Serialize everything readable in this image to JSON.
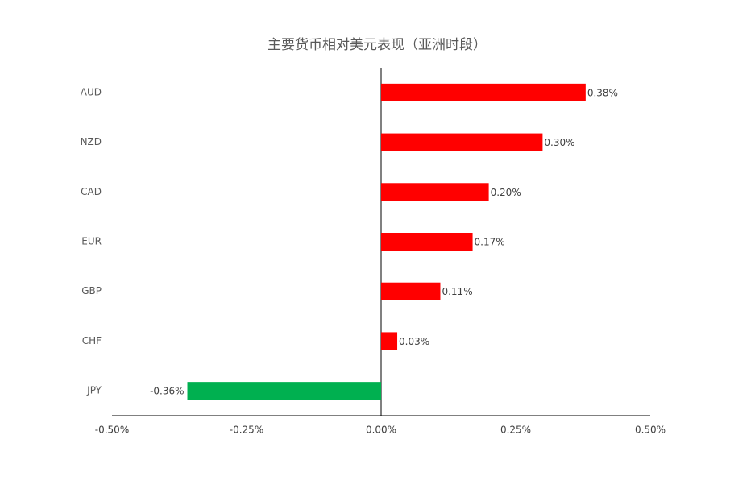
{
  "chart_data": {
    "type": "bar",
    "orientation": "horizontal",
    "title": "主要货币相对美元表现（亚洲时段）",
    "categories": [
      "AUD",
      "NZD",
      "CAD",
      "EUR",
      "GBP",
      "CHF",
      "JPY"
    ],
    "values": [
      0.38,
      0.3,
      0.2,
      0.17,
      0.11,
      0.03,
      -0.36
    ],
    "value_labels": [
      "0.38%",
      "0.30%",
      "0.20%",
      "0.17%",
      "0.11%",
      "0.03%",
      "-0.36%"
    ],
    "colors": [
      "#ff0000",
      "#ff0000",
      "#ff0000",
      "#ff0000",
      "#ff0000",
      "#ff0000",
      "#00b050"
    ],
    "xlim": [
      -0.5,
      0.5
    ],
    "xticks": [
      {
        "value": -0.5,
        "label": "-0.50%"
      },
      {
        "value": -0.25,
        "label": "-0.25%"
      },
      {
        "value": 0,
        "label": "0.00%"
      },
      {
        "value": 0.25,
        "label": "0.25%"
      },
      {
        "value": 0.5,
        "label": "0.50%"
      }
    ],
    "grid": false
  }
}
